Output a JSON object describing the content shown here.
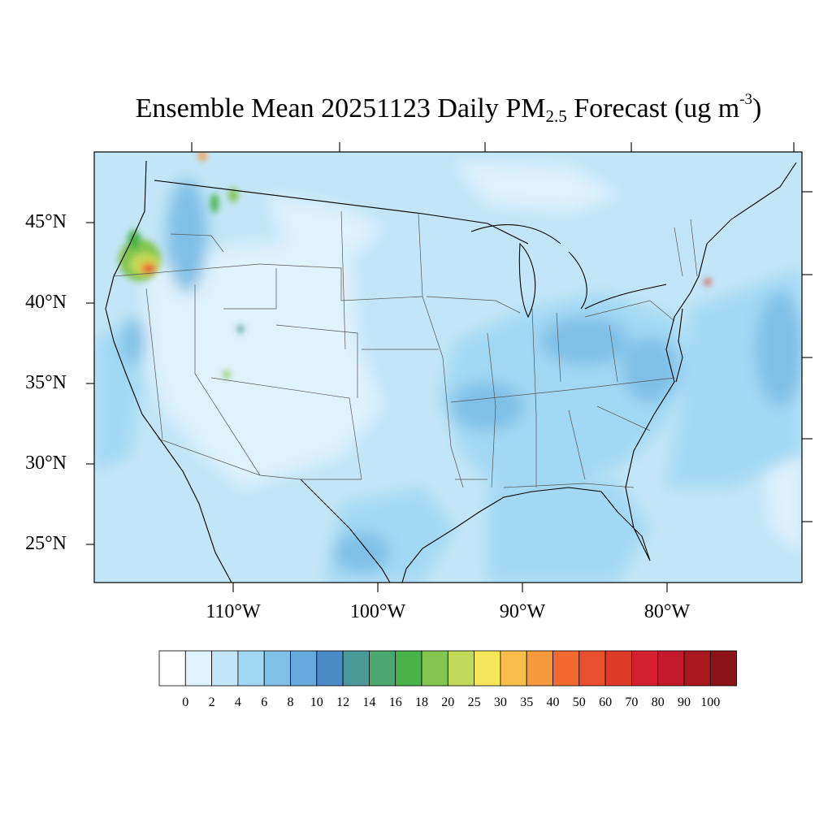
{
  "title": {
    "prefix": "Ensemble Mean 20251123 Daily PM",
    "subscript": "2.5",
    "middle": " Forecast (ug m",
    "superscript": "-3",
    "suffix": ")"
  },
  "lat_labels": [
    "45°N",
    "40°N",
    "35°N",
    "30°N",
    "25°N"
  ],
  "lon_labels": [
    "110°W",
    "100°W",
    "90°W",
    "80°W"
  ],
  "colorbar": {
    "labels": [
      "0",
      "2",
      "4",
      "6",
      "8",
      "10",
      "12",
      "14",
      "16",
      "18",
      "20",
      "25",
      "30",
      "35",
      "40",
      "50",
      "60",
      "70",
      "80",
      "90",
      "100"
    ],
    "colors": [
      "#ffffff",
      "#e0f2fb",
      "#c2e6f7",
      "#a3d8f4",
      "#80bfe6",
      "#66a9dc",
      "#4a8ac6",
      "#4a9a9a",
      "#4aa76e",
      "#4ab24a",
      "#83c550",
      "#c2d859",
      "#f8e65a",
      "#f9bd4c",
      "#f79a3e",
      "#f36a30",
      "#e85030",
      "#dd3a2a",
      "#d42030",
      "#c21a2a",
      "#a8181f",
      "#8c1418"
    ]
  }
}
